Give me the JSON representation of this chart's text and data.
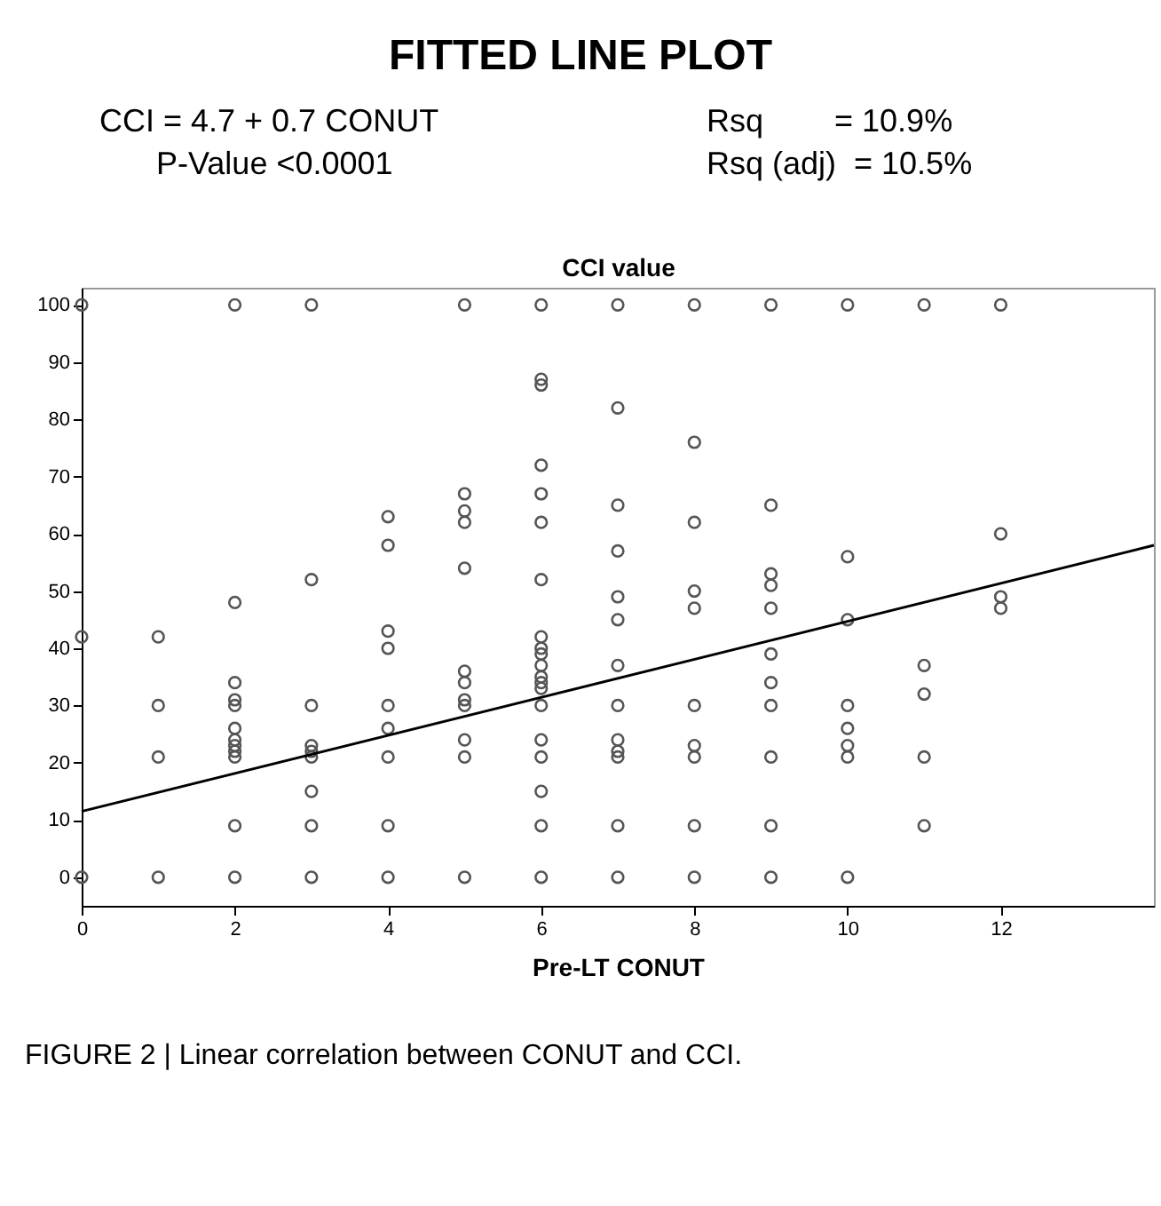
{
  "chart_data": {
    "type": "scatter",
    "title": "FITTED LINE PLOT",
    "annotations": [
      "CCI = 4.7 + 0.7 CONUT",
      "P-Value <0.0001",
      "Rsq        = 10.9%",
      "Rsq (adj)  = 10.5%",
      "FIGURE 2 | Linear correlation between CONUT and CCI."
    ],
    "xlabel": "Pre-LT CONUT",
    "ylabel": "CCI value",
    "xlim": [
      0,
      14
    ],
    "xticks": [
      0,
      2,
      4,
      6,
      8,
      10,
      12
    ],
    "ylim": [
      -5,
      103
    ],
    "yticks": [
      0,
      10,
      20,
      30,
      40,
      50,
      60,
      70,
      80,
      90,
      100
    ],
    "grid": false,
    "legend": false,
    "marker": "circle",
    "series": [
      {
        "type": "scatter",
        "color": "#555555",
        "x": [
          0,
          0,
          0,
          1,
          1,
          1,
          1,
          2,
          2,
          2,
          2,
          2,
          2,
          2,
          2,
          2,
          2,
          2,
          2,
          3,
          3,
          3,
          3,
          3,
          3,
          3,
          3,
          3,
          4,
          4,
          4,
          4,
          4,
          4,
          4,
          4,
          4,
          5,
          5,
          5,
          5,
          5,
          5,
          5,
          5,
          5,
          5,
          5,
          5,
          6,
          6,
          6,
          6,
          6,
          6,
          6,
          6,
          6,
          6,
          6,
          6,
          6,
          6,
          6,
          6,
          6,
          6,
          6,
          6,
          7,
          7,
          7,
          7,
          7,
          7,
          7,
          7,
          7,
          7,
          7,
          7,
          7,
          8,
          8,
          8,
          8,
          8,
          8,
          8,
          8,
          8,
          8,
          9,
          9,
          9,
          9,
          9,
          9,
          9,
          9,
          9,
          9,
          9,
          10,
          10,
          10,
          10,
          10,
          10,
          10,
          10,
          11,
          11,
          11,
          11,
          11,
          12,
          12,
          12,
          12
        ],
        "values": [
          100,
          42,
          0,
          42,
          30,
          21,
          0,
          100,
          48,
          34,
          31,
          30,
          26,
          24,
          23,
          22,
          21,
          9,
          0,
          100,
          52,
          30,
          23,
          22,
          21,
          15,
          9,
          0,
          63,
          58,
          43,
          40,
          30,
          26,
          21,
          9,
          0,
          100,
          67,
          64,
          62,
          54,
          36,
          34,
          31,
          30,
          24,
          21,
          0,
          100,
          87,
          86,
          72,
          67,
          62,
          52,
          42,
          40,
          39,
          37,
          35,
          34,
          33,
          30,
          24,
          21,
          15,
          9,
          0,
          100,
          82,
          65,
          57,
          49,
          45,
          37,
          30,
          24,
          22,
          21,
          9,
          0,
          100,
          76,
          62,
          50,
          47,
          30,
          23,
          21,
          9,
          0,
          100,
          65,
          53,
          51,
          47,
          39,
          34,
          30,
          21,
          9,
          0,
          100,
          56,
          45,
          30,
          26,
          23,
          21,
          0,
          100,
          37,
          32,
          21,
          9,
          100,
          60,
          49,
          47
        ]
      },
      {
        "type": "line",
        "marker": "none",
        "color": "#000000",
        "x": [
          0,
          14
        ],
        "values": [
          11.5,
          58
        ]
      }
    ]
  }
}
